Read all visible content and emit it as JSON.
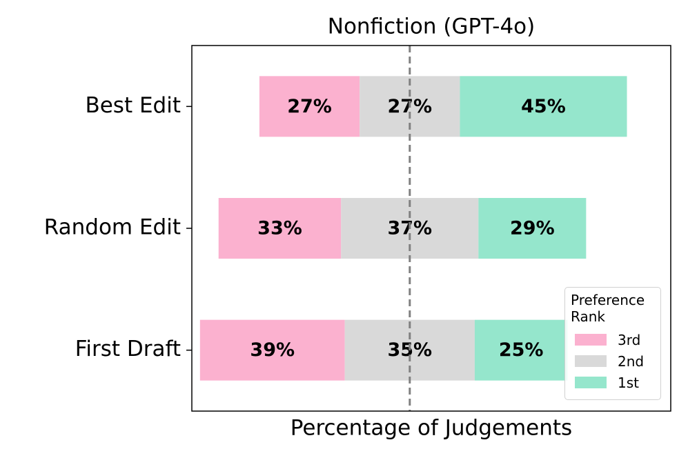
{
  "chart_data": {
    "type": "diverging_bar",
    "title": "Nonfiction (GPT-4o)",
    "x_label": "Percentage of Judgements",
    "legend_title": "Preference Rank",
    "categories": [
      "Best Edit",
      "Random Edit",
      "First Draft"
    ],
    "xlim": [
      -58.7,
      70.3
    ],
    "series": [
      {
        "name": "3rd",
        "color": "#fbb1cf",
        "values": [
          27,
          33,
          39
        ],
        "value_labels": [
          "27%",
          "33%",
          "39%"
        ]
      },
      {
        "name": "2nd",
        "color": "#d9d9d9",
        "values": [
          27,
          37,
          35
        ],
        "value_labels": [
          "27%",
          "37%",
          "35%"
        ]
      },
      {
        "name": "1st",
        "color": "#95e6cc",
        "values": [
          45,
          29,
          25
        ],
        "value_labels": [
          "45%",
          "29%",
          "25%"
        ]
      }
    ]
  }
}
